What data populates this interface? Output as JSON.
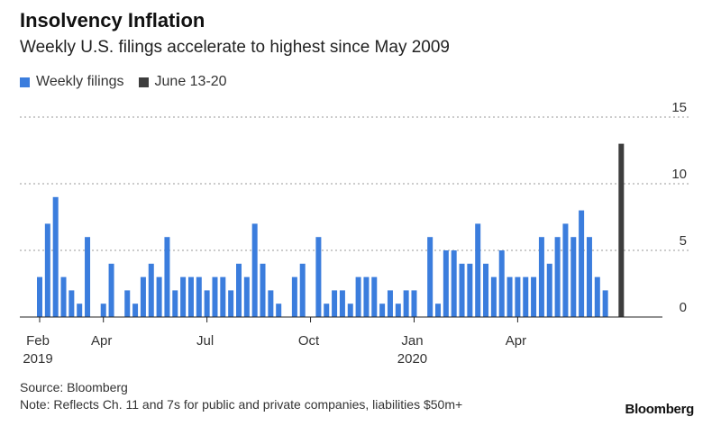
{
  "chart_data": {
    "type": "bar",
    "title": "Insolvency Inflation",
    "subtitle": "Weekly U.S. filings accelerate to highest since May 2009",
    "series": [
      {
        "name": "Weekly filings",
        "color": "#3b7ddd",
        "values": [
          3,
          7,
          9,
          3,
          2,
          1,
          6,
          0,
          1,
          4,
          0,
          2,
          1,
          3,
          4,
          3,
          6,
          2,
          3,
          3,
          3,
          2,
          3,
          3,
          2,
          4,
          3,
          7,
          4,
          2,
          1,
          0,
          3,
          4,
          0,
          6,
          1,
          2,
          2,
          1,
          3,
          3,
          3,
          1,
          2,
          1,
          2,
          2,
          0,
          6,
          1,
          5,
          5,
          4,
          4,
          7,
          4,
          3,
          5,
          3,
          3,
          3,
          3,
          6,
          4,
          6,
          7,
          6,
          8,
          6,
          3,
          2
        ]
      },
      {
        "name": "June 13-20",
        "color": "#3d3d3d",
        "values": [
          13
        ]
      }
    ],
    "ylim": [
      0,
      15
    ],
    "yticks": [
      "0",
      "5",
      "10",
      "15"
    ],
    "xticks": [
      {
        "index": 0,
        "label": "Feb",
        "sublabel": "2019"
      },
      {
        "index": 8,
        "label": "Apr",
        "sublabel": ""
      },
      {
        "index": 21,
        "label": "Jul",
        "sublabel": ""
      },
      {
        "index": 34,
        "label": "Oct",
        "sublabel": ""
      },
      {
        "index": 47,
        "label": "Jan",
        "sublabel": "2020"
      },
      {
        "index": 60,
        "label": "Apr",
        "sublabel": ""
      }
    ],
    "grid": true,
    "legend": "top-left"
  },
  "source": "Source: Bloomberg",
  "note": "Note: Reflects Ch. 11 and 7s for public and private companies, liabilities $50m+",
  "brand": "Bloomberg"
}
